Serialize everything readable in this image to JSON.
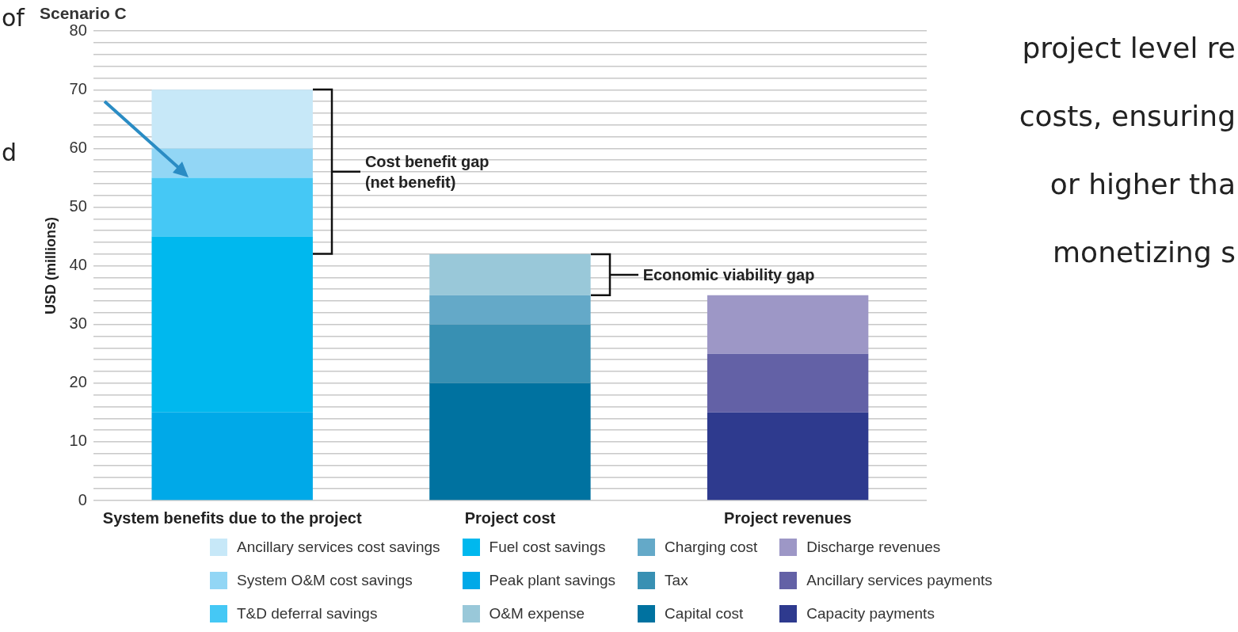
{
  "chart_data": {
    "type": "bar",
    "title": "Scenario C",
    "ylabel": "USD (millions)",
    "stacked": true,
    "categories": [
      "System benefits due to the project",
      "Project cost",
      "Project revenues"
    ],
    "series": [
      {
        "name": "Peak plant savings",
        "color": "#00a9e8",
        "values": [
          15,
          null,
          null
        ]
      },
      {
        "name": "Fuel cost savings",
        "color": "#00b8ee",
        "values": [
          30,
          null,
          null
        ]
      },
      {
        "name": "T&D deferral savings",
        "color": "#45c8f5",
        "values": [
          10,
          null,
          null
        ]
      },
      {
        "name": "System O&M cost savings",
        "color": "#92d6f5",
        "values": [
          5,
          null,
          null
        ]
      },
      {
        "name": "Ancillary services cost savings",
        "color": "#c7e8f8",
        "values": [
          10,
          null,
          null
        ]
      },
      {
        "name": "Capital cost",
        "color": "#0072a0",
        "values": [
          null,
          20,
          null
        ]
      },
      {
        "name": "Tax",
        "color": "#3890b3",
        "values": [
          null,
          10,
          null
        ]
      },
      {
        "name": "Charging cost",
        "color": "#64a9c8",
        "values": [
          null,
          5,
          null
        ]
      },
      {
        "name": "O&M expense",
        "color": "#99c8d9",
        "values": [
          null,
          7,
          null
        ]
      },
      {
        "name": "Capacity payments",
        "color": "#2e3a8e",
        "values": [
          null,
          null,
          15
        ]
      },
      {
        "name": "Ancillary services payments",
        "color": "#6361a6",
        "values": [
          null,
          null,
          10
        ]
      },
      {
        "name": "Discharge revenues",
        "color": "#9d97c6",
        "values": [
          null,
          null,
          10
        ]
      }
    ],
    "ylim": [
      0,
      80
    ],
    "yticks": [
      0,
      {
        "value": 2,
        "label": null
      },
      {
        "value": 4,
        "label": null
      },
      {
        "value": 6,
        "label": null
      },
      {
        "value": 8,
        "label": null
      },
      10,
      {
        "value": 12,
        "label": null
      },
      {
        "value": 14,
        "label": null
      },
      {
        "value": 16,
        "label": null
      },
      {
        "value": 18,
        "label": null
      },
      20,
      {
        "value": 22,
        "label": null
      },
      {
        "value": 24,
        "label": null
      },
      {
        "value": 26,
        "label": null
      },
      {
        "value": 28,
        "label": null
      },
      30,
      {
        "value": 32,
        "label": null
      },
      {
        "value": 34,
        "label": null
      },
      {
        "value": 36,
        "label": null
      },
      {
        "value": 38,
        "label": null
      },
      40,
      {
        "value": 42,
        "label": null
      },
      {
        "value": 44,
        "label": null
      },
      {
        "value": 46,
        "label": null
      },
      {
        "value": 48,
        "label": null
      },
      50,
      {
        "value": 52,
        "label": null
      },
      {
        "value": 54,
        "label": null
      },
      {
        "value": 56,
        "label": null
      },
      {
        "value": 58,
        "label": null
      },
      60,
      {
        "value": 62,
        "label": null
      },
      {
        "value": 64,
        "label": null
      },
      {
        "value": 66,
        "label": null
      },
      {
        "value": 68,
        "label": null
      },
      70,
      {
        "value": 72,
        "label": null
      },
      {
        "value": 74,
        "label": null
      },
      {
        "value": 76,
        "label": null
      },
      {
        "value": 78,
        "label": null
      },
      80
    ],
    "grid": "y",
    "legend": "bottom",
    "annotations": [
      "Cost benefit gap\n(net benefit)",
      "Economic viability gap",
      "of",
      "d",
      "project level re",
      "costs, ensuring",
      "or higher tha",
      "monetizing s"
    ]
  }
}
